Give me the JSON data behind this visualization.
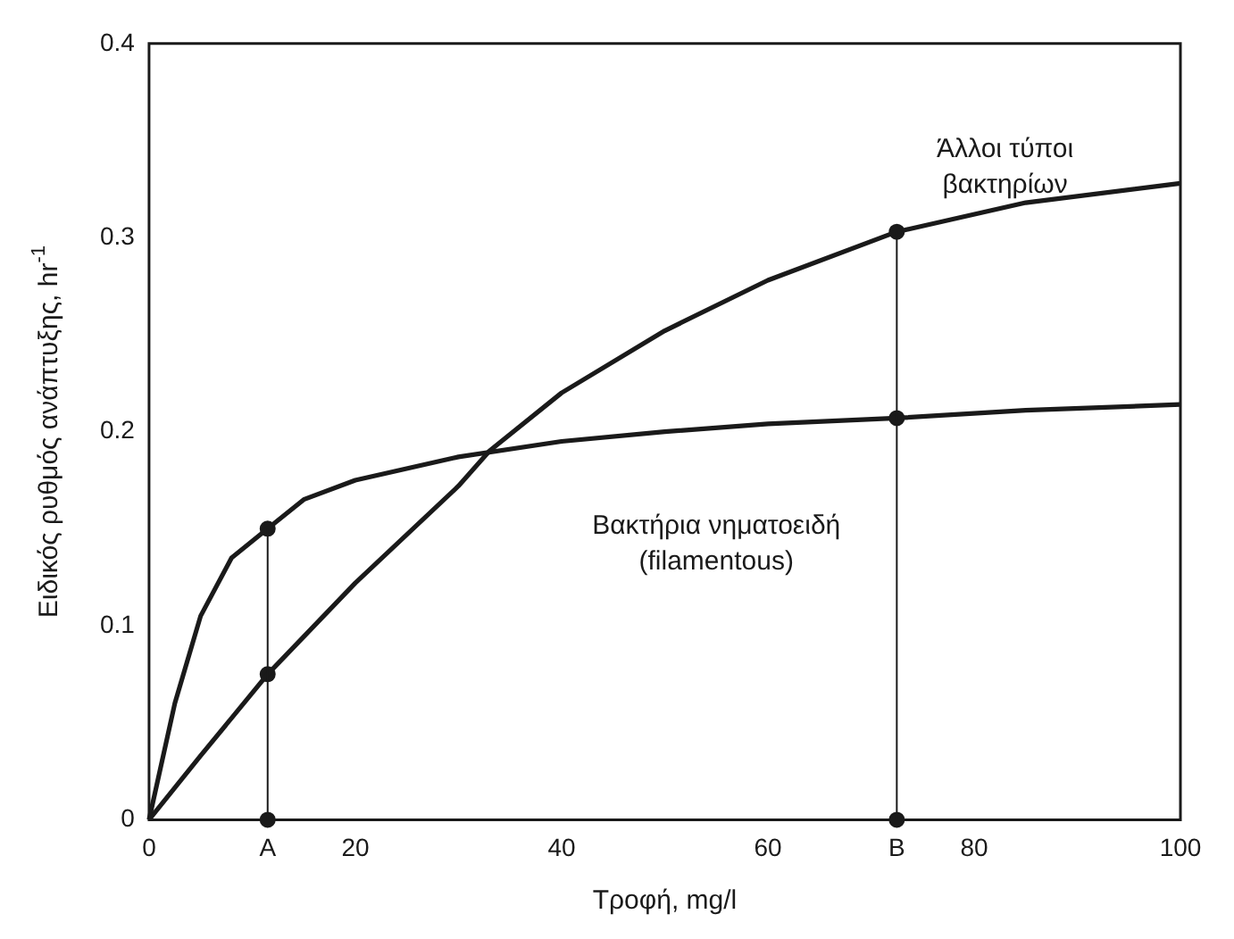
{
  "chart_data": {
    "type": "line",
    "xlabel": "Τροφή, mg/l",
    "ylabel": "Ειδικός ρυθμός ανάπτυξης, hr$^{-1}$",
    "xlim": [
      0,
      100
    ],
    "ylim": [
      0,
      0.4
    ],
    "xticks": [
      0,
      {
        "value": 11.5,
        "label": "A"
      },
      20,
      40,
      60,
      {
        "value": 72.5,
        "label": "B"
      },
      80,
      100
    ],
    "yticks": [
      0,
      0.1,
      0.2,
      0.3,
      0.4
    ],
    "grid": false,
    "series": [
      {
        "name": "Άλλοι τύποι βακτηρίων",
        "color": "#1a1a1a",
        "x": [
          0,
          5,
          11.5,
          20,
          30,
          33,
          40,
          50,
          60,
          72.5,
          85,
          100
        ],
        "values": [
          0,
          0.033,
          0.075,
          0.122,
          0.172,
          0.19,
          0.22,
          0.252,
          0.278,
          0.303,
          0.318,
          0.328
        ]
      },
      {
        "name": "Βακτήρια νηματοειδή (filamentous)",
        "color": "#1a1a1a",
        "x": [
          0,
          2.5,
          5,
          8,
          11.5,
          15,
          20,
          30,
          40,
          50,
          60,
          72.5,
          85,
          100
        ],
        "values": [
          0,
          0.06,
          0.105,
          0.135,
          0.15,
          0.165,
          0.175,
          0.187,
          0.195,
          0.2,
          0.204,
          0.207,
          0.211,
          0.214
        ]
      },
      {
        "type": "scatter",
        "color": "#1a1a1a",
        "marker": "circle",
        "x": [
          11.5,
          11.5,
          11.5,
          72.5,
          72.5,
          72.5
        ],
        "values": [
          0,
          0.075,
          0.15,
          0,
          0.207,
          0.303
        ]
      }
    ],
    "ref_lines": [
      {
        "axis": "x",
        "value": 11.5,
        "color": "#1a1a1a"
      },
      {
        "axis": "x",
        "value": 72.5,
        "color": "#1a1a1a"
      }
    ]
  }
}
